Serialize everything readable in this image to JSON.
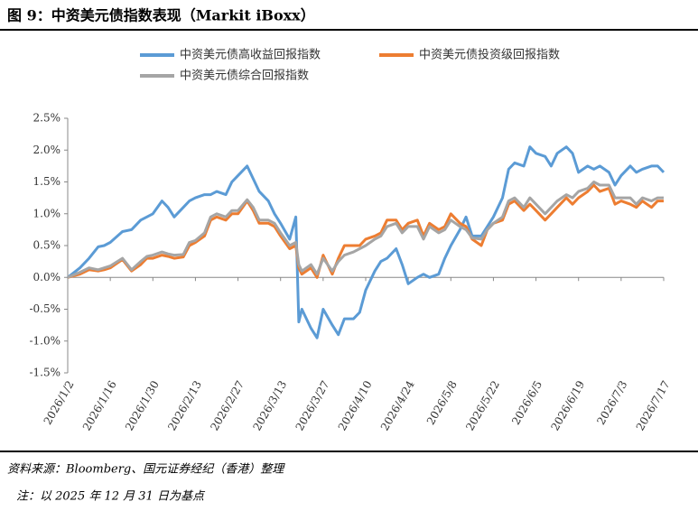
{
  "header": {
    "title": "图 9：中资美元债指数表现（Markit iBoxx）"
  },
  "chart_data": {
    "type": "line",
    "x": [
      "2026/1/2",
      "2026/1/6",
      "2026/1/9",
      "2026/1/12",
      "2026/1/14",
      "2026/1/16",
      "2026/1/20",
      "2026/1/23",
      "2026/1/26",
      "2026/1/28",
      "2026/1/30",
      "2026/2/2",
      "2026/2/4",
      "2026/2/6",
      "2026/2/9",
      "2026/2/11",
      "2026/2/13",
      "2026/2/16",
      "2026/2/18",
      "2026/2/20",
      "2026/2/23",
      "2026/2/25",
      "2026/2/27",
      "2026/3/2",
      "2026/3/4",
      "2026/3/6",
      "2026/3/9",
      "2026/3/11",
      "2026/3/13",
      "2026/3/16",
      "2026/3/18",
      "2026/3/19",
      "2026/3/20",
      "2026/3/23",
      "2026/3/25",
      "2026/3/27",
      "2026/3/30",
      "2026/4/1",
      "2026/4/3",
      "2026/4/6",
      "2026/4/8",
      "2026/4/10",
      "2026/4/13",
      "2026/4/15",
      "2026/4/17",
      "2026/4/20",
      "2026/4/22",
      "2026/4/24",
      "2026/4/27",
      "2026/4/29",
      "2026/5/1",
      "2026/5/4",
      "2026/5/6",
      "2026/5/8",
      "2026/5/11",
      "2026/5/13",
      "2026/5/15",
      "2026/5/18",
      "2026/5/20",
      "2026/5/22",
      "2026/5/25",
      "2026/5/27",
      "2026/5/29",
      "2026/6/1",
      "2026/6/3",
      "2026/6/5",
      "2026/6/8",
      "2026/6/10",
      "2026/6/12",
      "2026/6/15",
      "2026/6/17",
      "2026/6/19",
      "2026/6/22",
      "2026/6/24",
      "2026/6/26",
      "2026/6/29",
      "2026/7/1",
      "2026/7/3",
      "2026/7/6",
      "2026/7/8",
      "2026/7/10",
      "2026/7/13",
      "2026/7/15",
      "2026/7/17"
    ],
    "series": [
      {
        "name": "中资美元债高收益回报指数",
        "color": "#5b9bd5",
        "values": [
          0.0,
          0.15,
          0.3,
          0.48,
          0.5,
          0.55,
          0.72,
          0.75,
          0.9,
          0.95,
          1.0,
          1.2,
          1.1,
          0.95,
          1.1,
          1.2,
          1.25,
          1.3,
          1.3,
          1.35,
          1.3,
          1.5,
          1.6,
          1.75,
          1.55,
          1.35,
          1.2,
          1.0,
          0.85,
          0.6,
          0.95,
          -0.7,
          -0.5,
          -0.8,
          -0.95,
          -0.5,
          -0.75,
          -0.9,
          -0.65,
          -0.65,
          -0.55,
          -0.2,
          0.1,
          0.25,
          0.3,
          0.45,
          0.2,
          -0.1,
          0.0,
          0.05,
          0.0,
          0.05,
          0.3,
          0.5,
          0.75,
          0.95,
          0.65,
          0.65,
          0.8,
          0.95,
          1.25,
          1.7,
          1.8,
          1.75,
          2.05,
          1.95,
          1.9,
          1.75,
          1.95,
          2.05,
          1.95,
          1.65,
          1.75,
          1.7,
          1.75,
          1.65,
          1.45,
          1.6,
          1.75,
          1.65,
          1.7,
          1.75,
          1.75,
          1.65
        ]
      },
      {
        "name": "中资美元债投资级回报指数",
        "color": "#ed7d31",
        "values": [
          0.0,
          0.05,
          0.12,
          0.1,
          0.12,
          0.15,
          0.28,
          0.1,
          0.2,
          0.3,
          0.3,
          0.35,
          0.33,
          0.3,
          0.32,
          0.5,
          0.55,
          0.65,
          0.9,
          0.95,
          0.9,
          1.0,
          1.0,
          1.2,
          1.05,
          0.85,
          0.85,
          0.8,
          0.65,
          0.45,
          0.5,
          0.15,
          0.05,
          0.15,
          0.0,
          0.35,
          0.05,
          0.3,
          0.5,
          0.5,
          0.5,
          0.6,
          0.65,
          0.7,
          0.9,
          0.9,
          0.75,
          0.85,
          0.9,
          0.65,
          0.85,
          0.75,
          0.8,
          1.0,
          0.85,
          0.8,
          0.6,
          0.5,
          0.75,
          0.85,
          0.9,
          1.15,
          1.2,
          1.05,
          1.15,
          1.05,
          0.9,
          1.0,
          1.1,
          1.25,
          1.15,
          1.25,
          1.35,
          1.45,
          1.35,
          1.4,
          1.15,
          1.2,
          1.15,
          1.1,
          1.2,
          1.1,
          1.2,
          1.2
        ]
      },
      {
        "name": "中资美元债综合回报指数",
        "color": "#a5a5a5",
        "values": [
          0.0,
          0.08,
          0.15,
          0.12,
          0.15,
          0.18,
          0.3,
          0.12,
          0.25,
          0.33,
          0.35,
          0.4,
          0.37,
          0.35,
          0.36,
          0.55,
          0.58,
          0.7,
          0.95,
          1.0,
          0.95,
          1.05,
          1.05,
          1.22,
          1.1,
          0.9,
          0.9,
          0.85,
          0.7,
          0.5,
          0.55,
          0.2,
          0.1,
          0.2,
          0.05,
          0.3,
          0.1,
          0.25,
          0.35,
          0.4,
          0.45,
          0.5,
          0.6,
          0.65,
          0.8,
          0.85,
          0.7,
          0.8,
          0.8,
          0.6,
          0.8,
          0.7,
          0.75,
          0.9,
          0.8,
          0.75,
          0.62,
          0.6,
          0.75,
          0.85,
          0.95,
          1.2,
          1.25,
          1.1,
          1.25,
          1.15,
          1.0,
          1.1,
          1.2,
          1.3,
          1.25,
          1.35,
          1.4,
          1.5,
          1.45,
          1.45,
          1.25,
          1.25,
          1.25,
          1.15,
          1.25,
          1.2,
          1.25,
          1.25
        ]
      }
    ],
    "xlim": [
      "2026/1/2",
      "2026/7/17"
    ],
    "xticks": [
      "2026/1/2",
      "2026/1/16",
      "2026/1/30",
      "2026/2/13",
      "2026/2/27",
      "2026/3/13",
      "2026/3/27",
      "2026/4/10",
      "2026/4/24",
      "2026/5/8",
      "2026/5/22",
      "2026/6/5",
      "2026/6/19",
      "2026/7/3",
      "2026/7/17"
    ],
    "ylim": [
      -1.5,
      2.5
    ],
    "yticks": [
      {
        "value": -1.5,
        "label": "-1.5%"
      },
      {
        "value": -1.0,
        "label": "-1.0%"
      },
      {
        "value": -0.5,
        "label": "-0.5%"
      },
      {
        "value": 0,
        "label": "0.0%"
      },
      {
        "value": 0.5,
        "label": "0.5%"
      },
      {
        "value": 1.0,
        "label": "1.0%"
      },
      {
        "value": 1.5,
        "label": "1.5%"
      },
      {
        "value": 2.0,
        "label": "2.0%"
      },
      {
        "value": 2.5,
        "label": "2.5%"
      }
    ]
  },
  "footer": {
    "source": "资料来源：Bloomberg、国元证券经纪（香港）整理",
    "note": "注：以 2025 年 12 月 31 日为基点"
  }
}
